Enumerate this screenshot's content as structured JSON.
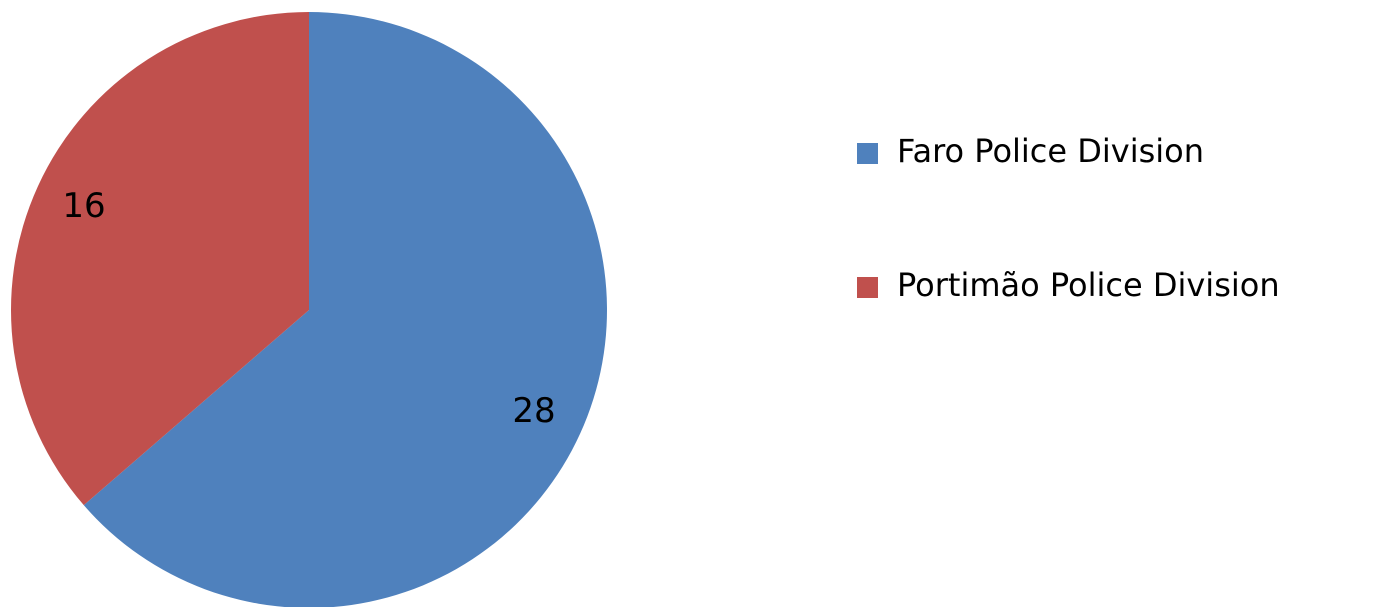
{
  "chart_data": {
    "type": "pie",
    "categories": [
      "Faro Police Division",
      "Portimão Police Division"
    ],
    "values": [
      28,
      16
    ],
    "colors": [
      "#4f81bd",
      "#c0504d"
    ],
    "legend": "right"
  }
}
